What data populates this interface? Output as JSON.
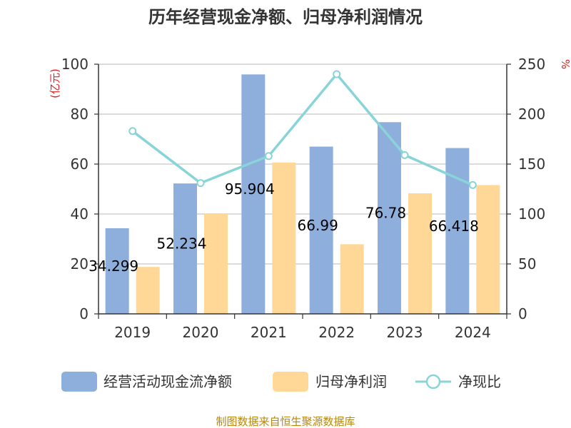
{
  "chart_data": {
    "type": "bar",
    "title": "历年经营现金净额、归母净利润情况",
    "categories": [
      "2019",
      "2020",
      "2021",
      "2022",
      "2023",
      "2024"
    ],
    "y_left": {
      "unit": "(亿元)",
      "ylim": [
        0,
        100
      ],
      "ticks": [
        0,
        20,
        40,
        60,
        80,
        100
      ]
    },
    "y_right": {
      "unit": "%",
      "ylim": [
        0,
        250
      ],
      "ticks": [
        0,
        50,
        100,
        150,
        200,
        250
      ]
    },
    "series": [
      {
        "name": "经营活动现金流净额",
        "type": "bar",
        "axis": "left",
        "color": "#8eaedb",
        "values": [
          34.299,
          52.234,
          95.904,
          66.99,
          76.78,
          66.418
        ],
        "labels": [
          "34.299",
          "52.234",
          "95.904",
          "66.99",
          "76.78",
          "66.418"
        ]
      },
      {
        "name": "归母净利润",
        "type": "bar",
        "axis": "left",
        "color": "#ffd898",
        "values": [
          18.8,
          40.0,
          60.6,
          27.9,
          48.3,
          51.6
        ]
      },
      {
        "name": "净现比",
        "type": "line",
        "axis": "right",
        "color": "#88d4d8",
        "values": [
          183,
          131,
          158,
          240,
          159,
          129
        ]
      }
    ],
    "grid": true,
    "legend": "bottom"
  },
  "source": "制图数据来自恒生聚源数据库"
}
